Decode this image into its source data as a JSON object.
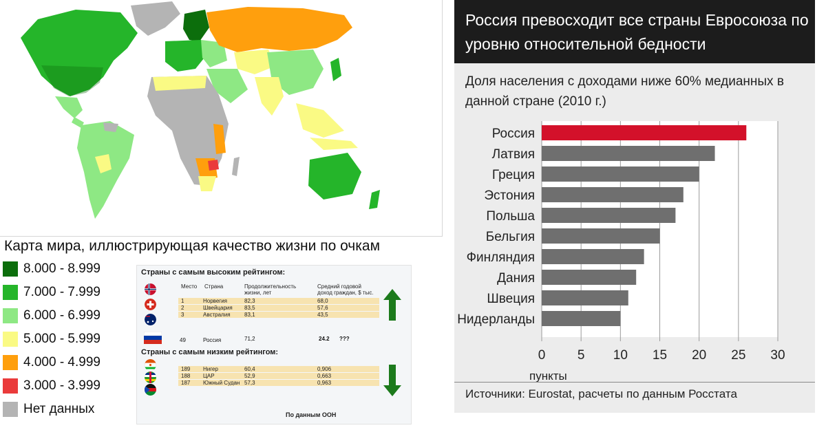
{
  "map": {
    "caption": "Карта мира, иллюстрирующая качество жизни по очкам",
    "colors": {
      "ocean": "#ffffff",
      "nodata": "#b4b4b4",
      "c8": "#0c6e0c",
      "c7": "#25b52a",
      "c6": "#8ee884",
      "c5": "#fafa84",
      "c4": "#ff9f0d",
      "c3": "#ea3b3b"
    },
    "legend": [
      {
        "label": "8.000 - 8.999",
        "color": "#0c6e0c"
      },
      {
        "label": "7.000 - 7.999",
        "color": "#25b52a"
      },
      {
        "label": "6.000 - 6.999",
        "color": "#8ee884"
      },
      {
        "label": "5.000 - 5.999",
        "color": "#fafa84"
      },
      {
        "label": "4.000 - 4.999",
        "color": "#ff9f0d"
      },
      {
        "label": "3.000 - 3.999",
        "color": "#ea3b3b"
      },
      {
        "label": "Нет данных",
        "color": "#b4b4b4"
      }
    ]
  },
  "ranking": {
    "top_title": "Страны с самым высоким рейтингом:",
    "bottom_title": "Страны с самым низким рейтингом:",
    "headers": {
      "place": "Место",
      "country": "Страна",
      "life1": "Продолжительность",
      "life2": "жизни, лет",
      "income1": "Средний годовой",
      "income2": "доход граждан, $ тыс."
    },
    "top": [
      {
        "place": "1",
        "country": "Норвегия",
        "life": "82,3",
        "income": "68,0"
      },
      {
        "place": "2",
        "country": "Швейцария",
        "life": "83,5",
        "income": "57,6"
      },
      {
        "place": "3",
        "country": "Австралия",
        "life": "83,1",
        "income": "43,5"
      }
    ],
    "russia": {
      "place": "49",
      "country": "Россия",
      "life": "71,2",
      "income": "24.2",
      "mark": "???"
    },
    "bottom": [
      {
        "place": "189",
        "country": "Нигер",
        "life": "60,4",
        "income": "0,906"
      },
      {
        "place": "188",
        "country": "ЦАР",
        "life": "52,9",
        "income": "0,663"
      },
      {
        "place": "187",
        "country": "Южный Судан",
        "life": "57,3",
        "income": "0,963"
      }
    ],
    "source": "По данным ООН",
    "arrow_color": "#1c7a1c"
  },
  "chart_data": {
    "type": "bar",
    "orientation": "horizontal",
    "title": "Россия превосходит все страны Евросоюза по уровню относительной бедности",
    "subtitle": "Доля населения с доходами ниже 60% медианных в данной стране (2010 г.)",
    "categories": [
      "Россия",
      "Латвия",
      "Греция",
      "Эстония",
      "Польша",
      "Бельгия",
      "Финляндия",
      "Дания",
      "Швеция",
      "Нидерланды"
    ],
    "values": [
      26,
      22,
      20,
      18,
      17,
      15,
      13,
      12,
      11,
      10
    ],
    "bar_colors": {
      "highlight": "#d3112a",
      "default": "#6f6f6f"
    },
    "xlabel": "пункты",
    "xlim": [
      0,
      30
    ],
    "xticks": [
      "0",
      "5",
      "10",
      "15",
      "20",
      "25",
      "30"
    ],
    "grid": true,
    "source": "Источники: Eurostat, расчеты по данным Росстата"
  }
}
